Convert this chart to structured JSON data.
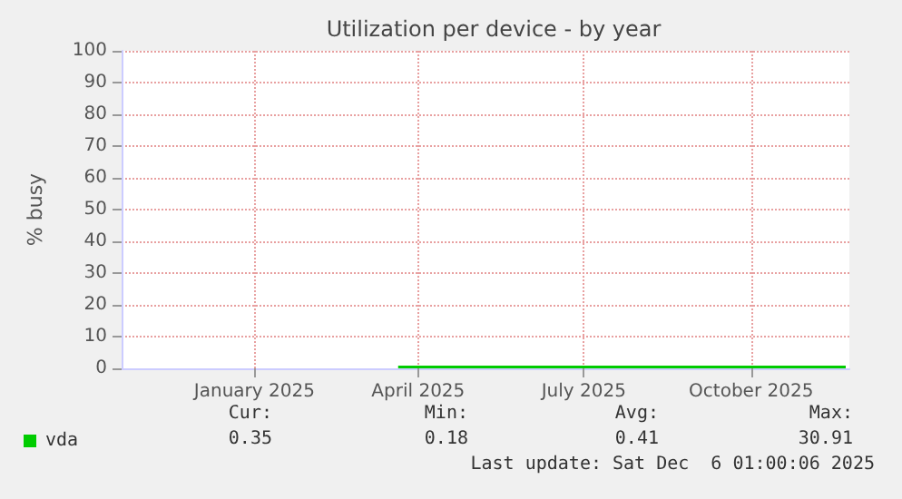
{
  "chart_data": {
    "type": "line",
    "title": "Utilization per device - by year",
    "ylabel": "% busy",
    "x": [
      "2025-04-04",
      "2025-05-01",
      "2025-06-01",
      "2025-07-01",
      "2025-08-01",
      "2025-09-01",
      "2025-10-01",
      "2025-11-01",
      "2025-12-06"
    ],
    "series": [
      {
        "name": "vda",
        "color": "#00cc00",
        "values": [
          0.4,
          0.4,
          0.4,
          0.4,
          0.4,
          0.4,
          0.4,
          0.4,
          0.4
        ]
      }
    ],
    "xlim": [
      "2024-11-03",
      "2025-12-08"
    ],
    "xticks": [
      {
        "value": "2025-01-15",
        "label": "January 2025"
      },
      {
        "value": "2025-04-15",
        "label": "April 2025"
      },
      {
        "value": "2025-07-15",
        "label": "July 2025"
      },
      {
        "value": "2025-10-15",
        "label": "October 2025"
      }
    ],
    "ylim": [
      0,
      100
    ],
    "yticks": [
      0,
      10,
      20,
      30,
      40,
      50,
      60,
      70,
      80,
      90,
      100
    ],
    "grid": true,
    "legend": "bottom left",
    "marker": "none",
    "line_style": "solid",
    "annotations": [
      "Cur:",
      "Min:",
      "Avg:",
      "Max:",
      "0.35",
      "0.18",
      "0.41",
      "30.91",
      "Last update: Sat Dec  6 01:00:06 2025"
    ]
  }
}
